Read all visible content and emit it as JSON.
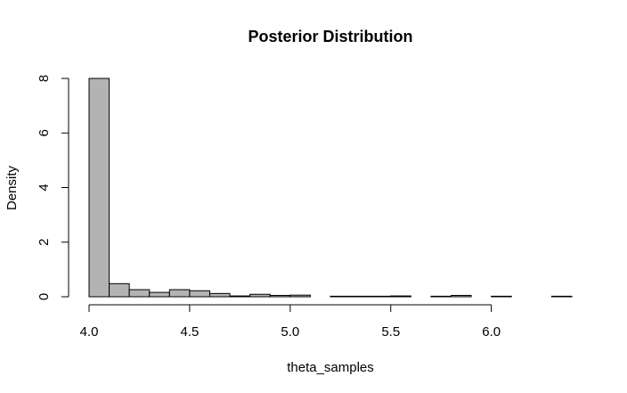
{
  "chart_data": {
    "type": "bar",
    "title": "Posterior Distribution",
    "xlabel": "theta_samples",
    "ylabel": "Density",
    "xlim": [
      4.0,
      6.4
    ],
    "ylim": [
      0,
      8
    ],
    "x_ticks": [
      4.0,
      4.5,
      5.0,
      5.5,
      6.0
    ],
    "x_tick_labels": [
      "4.0",
      "4.5",
      "5.0",
      "5.5",
      "6.0"
    ],
    "y_ticks": [
      0,
      2,
      4,
      6,
      8
    ],
    "y_tick_labels": [
      "0",
      "2",
      "4",
      "6",
      "8"
    ],
    "bin_width": 0.1,
    "bin_edges": [
      4.0,
      4.1,
      4.2,
      4.3,
      4.4,
      4.5,
      4.6,
      4.7,
      4.8,
      4.9,
      5.0,
      5.1,
      5.2,
      5.3,
      5.4,
      5.5,
      5.6,
      5.7,
      5.8,
      5.9,
      6.0,
      6.1,
      6.2,
      6.3,
      6.4
    ],
    "values": [
      8.0,
      0.48,
      0.26,
      0.16,
      0.26,
      0.22,
      0.12,
      0.03,
      0.09,
      0.05,
      0.06,
      0.0,
      0.02,
      0.02,
      0.02,
      0.03,
      0.0,
      0.02,
      0.05,
      0.0,
      0.02,
      0.0,
      0.0,
      0.02
    ],
    "bar_color": "#b3b3b3",
    "grid": false,
    "legend": "none"
  }
}
